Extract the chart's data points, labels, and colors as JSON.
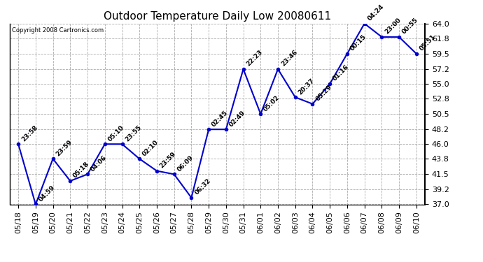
{
  "title": "Outdoor Temperature Daily Low 20080611",
  "copyright": "Copyright 2008 Cartronics.com",
  "x_labels": [
    "05/18",
    "05/19",
    "05/20",
    "05/21",
    "05/22",
    "05/23",
    "05/24",
    "05/25",
    "05/26",
    "05/27",
    "05/28",
    "05/29",
    "05/30",
    "05/31",
    "06/01",
    "06/02",
    "06/03",
    "06/04",
    "06/05",
    "06/06",
    "06/07",
    "06/08",
    "06/09",
    "06/10"
  ],
  "y_values": [
    46.0,
    37.0,
    43.8,
    40.5,
    41.5,
    46.0,
    46.0,
    43.8,
    42.0,
    41.5,
    38.0,
    48.2,
    48.2,
    57.2,
    50.5,
    57.2,
    53.0,
    52.0,
    55.0,
    59.5,
    64.0,
    62.0,
    62.0,
    59.5
  ],
  "point_labels": [
    "23:58",
    "04:59",
    "23:59",
    "05:18",
    "04:06",
    "05:10",
    "23:55",
    "02:10",
    "23:59",
    "06:09",
    "06:32",
    "02:45",
    "02:49",
    "22:23",
    "05:02",
    "23:46",
    "20:37",
    "05:29",
    "01:16",
    "00:15",
    "04:24",
    "23:00",
    "00:55",
    "05:51"
  ],
  "ylim": [
    37.0,
    64.0
  ],
  "yticks": [
    37.0,
    39.2,
    41.5,
    43.8,
    46.0,
    48.2,
    50.5,
    52.8,
    55.0,
    57.2,
    59.5,
    61.8,
    64.0
  ],
  "line_color": "#0000cc",
  "marker_color": "#0000cc",
  "background_color": "#ffffff",
  "plot_bg_color": "#ffffff",
  "grid_color": "#aaaaaa",
  "title_fontsize": 11,
  "tick_fontsize": 8,
  "label_fontsize": 6.5
}
